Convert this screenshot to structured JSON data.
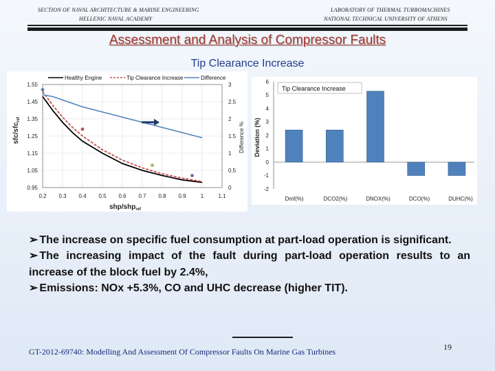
{
  "header": {
    "left_line1": "SECTION OF NAVAL ARCHITECTURE & MARINE ENGINEERING",
    "left_line2": "HELLENIC NAVAL ACADEMY",
    "right_line1": "LABORATORY OF THERMAL TURBOMACHINES",
    "right_line2": "NATIONAL TECHNICAL UNIVERSITY OF ATHENS"
  },
  "title": "Assessment and Analysis of Compressor Faults",
  "subtitle": "Tip Clearance Increase",
  "chart_data": [
    {
      "type": "line",
      "legend": [
        "Healthy Engine",
        "Tip Clearance Increase",
        "Difference"
      ],
      "xlabel": "shp/shp",
      "xlabel_sub": "ref",
      "ylabel": "sfc/sfc",
      "ylabel_sub": "ref",
      "y2label": "Difference %",
      "xlim": [
        0.2,
        1.1
      ],
      "ylim": [
        0.95,
        1.55
      ],
      "y2lim": [
        0,
        3
      ],
      "xticks": [
        "0.2",
        "0.3",
        "0.4",
        "0.5",
        "0.6",
        "0.7",
        "0.8",
        "0.9",
        "1",
        "1.1"
      ],
      "yticks": [
        "0.95",
        "1.05",
        "1.15",
        "1.25",
        "1.35",
        "1.45",
        "1.55"
      ],
      "y2ticks": [
        "0",
        "0.5",
        "1",
        "1.5",
        "2",
        "2.5",
        "3"
      ],
      "series": [
        {
          "name": "Healthy Engine",
          "color": "#000000",
          "x": [
            0.2,
            0.25,
            0.3,
            0.35,
            0.4,
            0.5,
            0.6,
            0.7,
            0.8,
            0.9,
            1.0
          ],
          "y": [
            1.48,
            1.4,
            1.33,
            1.27,
            1.22,
            1.15,
            1.09,
            1.05,
            1.02,
            0.995,
            0.98
          ]
        },
        {
          "name": "Tip Clearance Increase",
          "color": "#c0504d",
          "x": [
            0.2,
            0.25,
            0.3,
            0.35,
            0.4,
            0.5,
            0.6,
            0.7,
            0.8,
            0.9,
            1.0
          ],
          "y": [
            1.51,
            1.43,
            1.36,
            1.3,
            1.25,
            1.17,
            1.11,
            1.065,
            1.03,
            1.005,
            0.985
          ]
        },
        {
          "name": "Difference",
          "color": "#4f81bd",
          "axis": "secondary",
          "x": [
            0.2,
            0.25,
            0.3,
            0.4,
            0.5,
            0.6,
            0.7,
            0.8,
            0.9,
            1.0
          ],
          "y": [
            2.7,
            2.65,
            2.55,
            2.35,
            2.2,
            2.05,
            1.9,
            1.75,
            1.6,
            1.45
          ]
        }
      ],
      "markers": [
        {
          "x": 0.2,
          "y": 1.52,
          "color": "#4f81bd"
        },
        {
          "x": 0.4,
          "y": 1.29,
          "color": "#c0504d"
        },
        {
          "x": 0.75,
          "y": 1.08,
          "color": "#9bbb59"
        },
        {
          "x": 0.95,
          "y": 1.02,
          "color": "#8064a2"
        }
      ]
    },
    {
      "type": "bar",
      "title": "Tip Clearance Increase",
      "ylabel": "Deviation (%)",
      "categories": [
        "Dmf(%)",
        "DCO2(%)",
        "DNOX(%)",
        "DCO(%)",
        "DUHC(%)"
      ],
      "values": [
        2.4,
        2.4,
        5.3,
        -1.0,
        -1.0
      ],
      "ylim": [
        -2,
        6
      ],
      "yticks": [
        "-2",
        "-1",
        "0",
        "1",
        "2",
        "3",
        "4",
        "5",
        "6"
      ],
      "color": "#4f81bd"
    }
  ],
  "bullets": [
    "The increase on specific fuel consumption at part-load operation is significant.",
    "The increasing impact of the fault during part-load operation results to an increase of the block fuel by 2.4%,",
    "Emissions: NOx +5.3%, CO and UHC decrease (higher TIT)."
  ],
  "footer": {
    "text": "GT-2012-69740: Modelling And Assessment Of Compressor Faults On Marine Gas Turbines",
    "page": "19"
  },
  "colors": {
    "title": "#a5392f",
    "subtitle": "#1f3a8a",
    "footer": "#15277a",
    "bar": "#4f81bd"
  }
}
